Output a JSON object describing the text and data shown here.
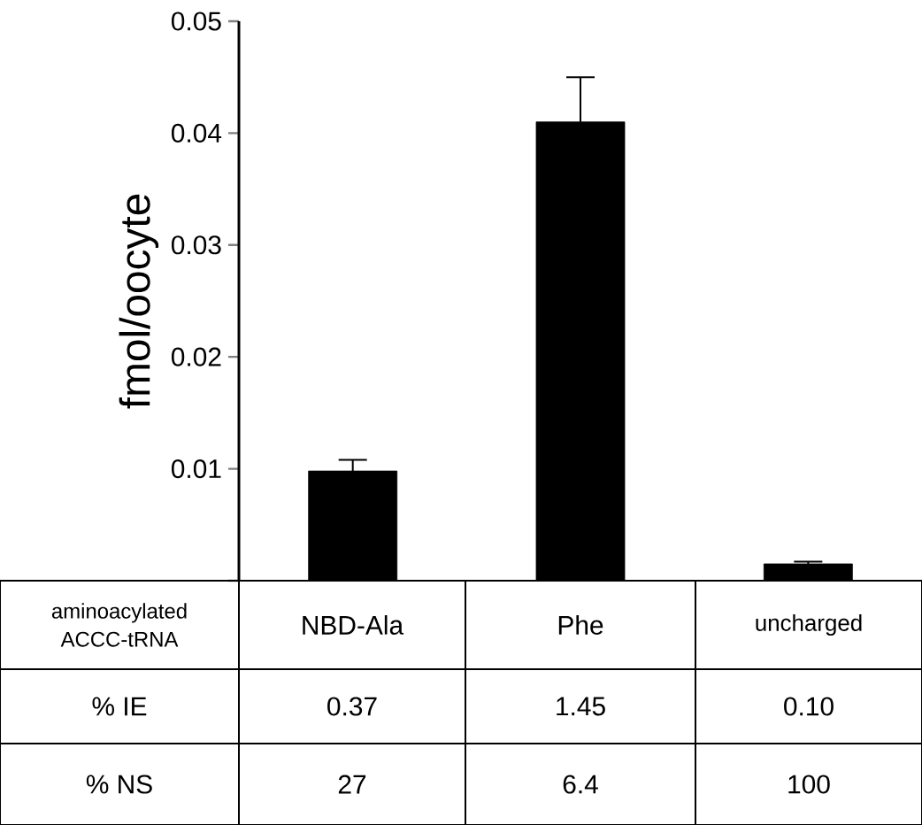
{
  "chart_data": {
    "type": "bar",
    "ylabel": "fmol/oocyte",
    "categories": [
      "NBD-Ala",
      "Phe",
      "uncharged"
    ],
    "values": [
      0.0098,
      0.041,
      0.0015
    ],
    "errors": [
      0.001,
      0.004,
      0.0002
    ],
    "color": "#000000",
    "ylim": [
      0,
      0.05
    ],
    "yticks": [
      {
        "value": 0,
        "label": null
      },
      0.01,
      0.02,
      0.03,
      0.04,
      0.05
    ],
    "grid": false,
    "annotations": [
      "aminoacylated ACCC-tRNA",
      "% IE",
      "0.37",
      "1.45",
      "0.10",
      "% NS",
      "27",
      "6.4",
      "100"
    ]
  }
}
